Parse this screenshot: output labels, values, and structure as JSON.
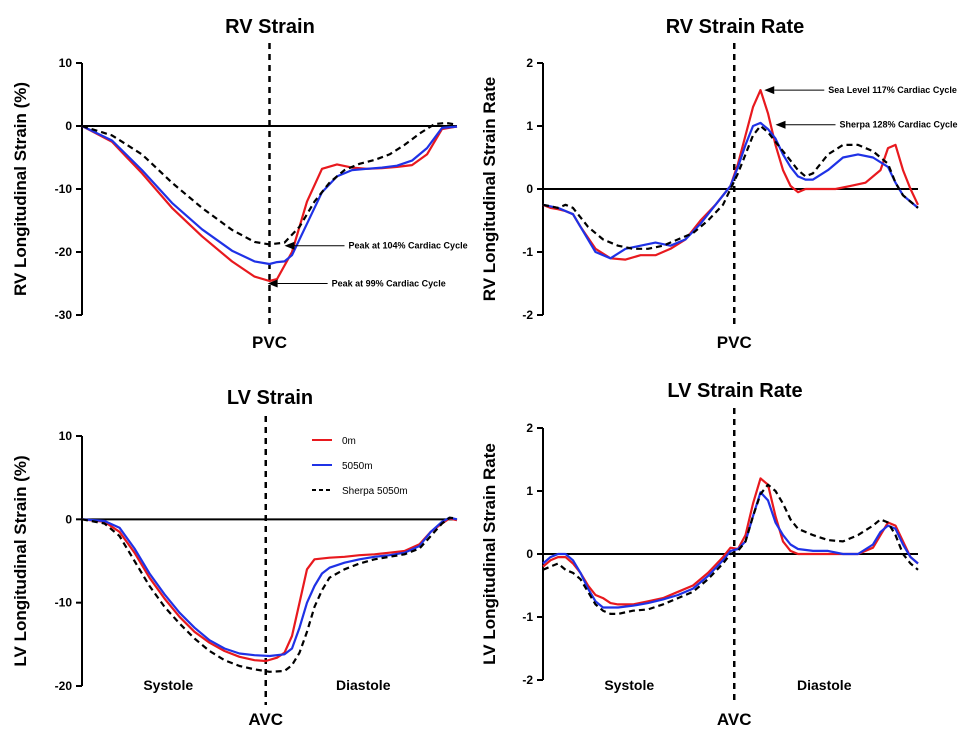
{
  "colors": {
    "sea_level": "#e8191e",
    "altitude": "#1f32e6",
    "sherpa": "#000000"
  },
  "legend": {
    "items": [
      {
        "label": "0m",
        "color": "#e8191e",
        "style": "solid"
      },
      {
        "label": "5050m",
        "color": "#1f32e6",
        "style": "solid"
      },
      {
        "label": "Sherpa 5050m",
        "color": "#000000",
        "style": "dashed"
      }
    ]
  },
  "chart_data": [
    {
      "id": "rv_strain",
      "type": "line",
      "title": "RV Strain",
      "xlabel": "",
      "ylabel": "RV Longitudinal Strain (%)",
      "ylim": [
        -30,
        10
      ],
      "xlim": [
        0,
        100
      ],
      "yticks": [
        10,
        0,
        -10,
        -20,
        -30
      ],
      "grid": false,
      "marker": {
        "label": "PVC",
        "x": 50
      },
      "phases": [],
      "annotations": [
        {
          "text": "Peak at 104% Cardiac Cycle",
          "x": 54,
          "y": -19
        },
        {
          "text": "Peak at 99% Cardiac Cycle",
          "x": 49.5,
          "y": -25
        }
      ],
      "series": [
        {
          "color": "#e8191e",
          "style": "solid",
          "x": [
            0,
            8,
            16,
            24,
            32,
            40,
            46,
            50,
            52,
            56,
            60,
            64,
            68,
            72,
            76,
            80,
            84,
            88,
            92,
            96,
            100
          ],
          "y": [
            0,
            -2.5,
            -7.5,
            -13,
            -17.5,
            -21.5,
            -23.9,
            -24.6,
            -24.3,
            -20,
            -12,
            -6.8,
            -6.1,
            -6.6,
            -6.8,
            -6.7,
            -6.5,
            -6.2,
            -4.5,
            -0.5,
            -0.1
          ]
        },
        {
          "color": "#1f32e6",
          "style": "solid",
          "x": [
            0,
            8,
            16,
            24,
            32,
            40,
            46,
            50,
            52,
            54,
            56,
            60,
            64,
            68,
            72,
            76,
            80,
            84,
            88,
            92,
            96,
            100
          ],
          "y": [
            0,
            -2.3,
            -7,
            -12.2,
            -16.4,
            -19.8,
            -21.5,
            -21.9,
            -21.6,
            -21.5,
            -20.5,
            -15.5,
            -10.5,
            -8,
            -7,
            -6.8,
            -6.6,
            -6.3,
            -5.5,
            -3.5,
            -0.3,
            -0.1
          ]
        },
        {
          "color": "#000000",
          "style": "dashed",
          "x": [
            0,
            8,
            16,
            24,
            32,
            40,
            46,
            50,
            54,
            58,
            62,
            66,
            70,
            74,
            78,
            82,
            86,
            90,
            94,
            97,
            100
          ],
          "y": [
            0,
            -1.5,
            -4.5,
            -9,
            -13,
            -16.5,
            -18.4,
            -18.8,
            -18.5,
            -16,
            -12,
            -9,
            -7,
            -6,
            -5.4,
            -4.5,
            -3,
            -1.2,
            0.3,
            0.5,
            0.2
          ]
        }
      ]
    },
    {
      "id": "rv_strain_rate",
      "type": "line",
      "title": "RV Strain Rate",
      "xlabel": "",
      "ylabel": "RV Longitudinal Strain Rate",
      "ylim": [
        -2,
        2
      ],
      "xlim": [
        0,
        100
      ],
      "yticks": [
        2,
        1,
        0,
        -1,
        -2
      ],
      "grid": false,
      "marker": {
        "label": "PVC",
        "x": 51
      },
      "phases": [],
      "annotations": [
        {
          "text": "Sea Level 117% Cardiac Cycle",
          "x": 59,
          "y": 1.57
        },
        {
          "text": "Sherpa 128% Cardiac Cycle",
          "x": 62,
          "y": 1.02
        }
      ],
      "series": [
        {
          "color": "#e8191e",
          "style": "solid",
          "x": [
            0,
            2,
            4,
            6,
            8,
            10,
            14,
            18,
            22,
            26,
            30,
            34,
            38,
            42,
            46,
            50,
            52,
            54,
            56,
            58,
            60,
            62,
            64,
            66,
            68,
            70,
            74,
            78,
            82,
            86,
            90,
            92,
            94,
            96,
            98,
            100
          ],
          "y": [
            -0.25,
            -0.3,
            -0.32,
            -0.35,
            -0.4,
            -0.6,
            -0.95,
            -1.1,
            -1.12,
            -1.05,
            -1.05,
            -0.95,
            -0.8,
            -0.5,
            -0.25,
            0.05,
            0.4,
            0.85,
            1.3,
            1.57,
            1.2,
            0.7,
            0.3,
            0.05,
            -0.05,
            0.0,
            0.0,
            0.0,
            0.05,
            0.1,
            0.3,
            0.65,
            0.7,
            0.3,
            0.0,
            -0.25
          ]
        },
        {
          "color": "#1f32e6",
          "style": "solid",
          "x": [
            0,
            4,
            8,
            10,
            14,
            18,
            22,
            26,
            30,
            34,
            38,
            42,
            46,
            50,
            52,
            54,
            56,
            58,
            60,
            62,
            64,
            66,
            68,
            70,
            72,
            76,
            80,
            84,
            88,
            92,
            94,
            96,
            98,
            100
          ],
          "y": [
            -0.25,
            -0.3,
            -0.4,
            -0.6,
            -1.0,
            -1.1,
            -0.95,
            -0.9,
            -0.85,
            -0.9,
            -0.8,
            -0.55,
            -0.25,
            0.05,
            0.35,
            0.7,
            1.0,
            1.05,
            0.95,
            0.8,
            0.55,
            0.35,
            0.2,
            0.15,
            0.15,
            0.3,
            0.5,
            0.55,
            0.5,
            0.35,
            0.1,
            -0.1,
            -0.2,
            -0.3
          ]
        },
        {
          "color": "#000000",
          "style": "dashed",
          "x": [
            0,
            4,
            6,
            8,
            12,
            16,
            20,
            24,
            28,
            32,
            36,
            40,
            44,
            48,
            50,
            52,
            54,
            56,
            58,
            60,
            62,
            64,
            66,
            68,
            70,
            72,
            74,
            76,
            80,
            84,
            88,
            92,
            94,
            96,
            98,
            100
          ],
          "y": [
            -0.25,
            -0.3,
            -0.25,
            -0.3,
            -0.6,
            -0.8,
            -0.9,
            -0.95,
            -0.95,
            -0.9,
            -0.8,
            -0.7,
            -0.5,
            -0.25,
            0.0,
            0.25,
            0.55,
            0.85,
            1.0,
            0.9,
            0.75,
            0.6,
            0.45,
            0.3,
            0.2,
            0.25,
            0.4,
            0.55,
            0.7,
            0.7,
            0.6,
            0.4,
            0.1,
            -0.1,
            -0.2,
            -0.3
          ]
        }
      ]
    },
    {
      "id": "lv_strain",
      "type": "line",
      "title": "LV Strain",
      "xlabel": "",
      "ylabel": "LV Longitudinal Strain (%)",
      "ylim": [
        -20,
        10
      ],
      "xlim": [
        0,
        100
      ],
      "yticks": [
        10,
        0,
        -10,
        -20
      ],
      "grid": false,
      "marker": {
        "label": "AVC",
        "x": 49
      },
      "phases": [
        {
          "label": "Systole",
          "x": 23
        },
        {
          "label": "Diastole",
          "x": 75
        }
      ],
      "annotations": [],
      "series": [
        {
          "color": "#e8191e",
          "style": "solid",
          "x": [
            0,
            6,
            10,
            14,
            18,
            22,
            26,
            30,
            34,
            38,
            42,
            46,
            49,
            52,
            54,
            56,
            58,
            60,
            62,
            66,
            70,
            74,
            78,
            82,
            86,
            90,
            93,
            96,
            98,
            100
          ],
          "y": [
            0,
            -0.3,
            -1.5,
            -4,
            -7,
            -9.5,
            -11.7,
            -13.5,
            -14.8,
            -15.8,
            -16.5,
            -16.9,
            -17.0,
            -16.6,
            -16.0,
            -14.0,
            -10.0,
            -6.0,
            -4.8,
            -4.6,
            -4.5,
            -4.3,
            -4.2,
            -4.0,
            -3.8,
            -3.0,
            -1.5,
            -0.5,
            0.1,
            -0.1
          ]
        },
        {
          "color": "#1f32e6",
          "style": "solid",
          "x": [
            0,
            6,
            10,
            14,
            18,
            22,
            26,
            30,
            34,
            38,
            42,
            46,
            50,
            54,
            56,
            58,
            60,
            62,
            64,
            66,
            70,
            74,
            78,
            82,
            86,
            90,
            93,
            96,
            98,
            100
          ],
          "y": [
            0,
            -0.2,
            -1.0,
            -3.5,
            -6.5,
            -9,
            -11.2,
            -13,
            -14.5,
            -15.5,
            -16.1,
            -16.3,
            -16.4,
            -16.2,
            -15.5,
            -13.0,
            -10.0,
            -8.0,
            -6.5,
            -5.8,
            -5.2,
            -4.8,
            -4.5,
            -4.3,
            -4.0,
            -3.2,
            -1.5,
            -0.3,
            0.2,
            0.0
          ]
        },
        {
          "color": "#000000",
          "style": "dashed",
          "x": [
            0,
            6,
            10,
            14,
            18,
            22,
            26,
            30,
            34,
            38,
            42,
            46,
            50,
            54,
            56,
            58,
            60,
            62,
            64,
            66,
            70,
            74,
            78,
            82,
            86,
            90,
            93,
            96,
            98,
            100
          ],
          "y": [
            0,
            -0.5,
            -2.0,
            -5,
            -8,
            -10.5,
            -12.5,
            -14.3,
            -15.8,
            -16.9,
            -17.6,
            -18.0,
            -18.3,
            -18.2,
            -17.5,
            -16,
            -13.5,
            -10.5,
            -8.5,
            -7,
            -6,
            -5.3,
            -4.8,
            -4.5,
            -4.2,
            -3.5,
            -2.0,
            -0.5,
            0.2,
            0.1
          ]
        }
      ]
    },
    {
      "id": "lv_strain_rate",
      "type": "line",
      "title": "LV Strain Rate",
      "xlabel": "",
      "ylabel": "LV Longitudinal Strain Rate",
      "ylim": [
        -2,
        2
      ],
      "xlim": [
        0,
        100
      ],
      "yticks": [
        2,
        1,
        0,
        -1,
        -2
      ],
      "grid": false,
      "marker": {
        "label": "AVC",
        "x": 51
      },
      "phases": [
        {
          "label": "Systole",
          "x": 23
        },
        {
          "label": "Diastole",
          "x": 75
        }
      ],
      "annotations": [],
      "series": [
        {
          "color": "#e8191e",
          "style": "solid",
          "x": [
            0,
            2,
            4,
            6,
            8,
            10,
            12,
            14,
            16,
            18,
            20,
            24,
            28,
            32,
            36,
            40,
            44,
            48,
            50,
            52,
            54,
            56,
            58,
            60,
            62,
            64,
            66,
            68,
            72,
            76,
            80,
            84,
            88,
            90,
            92,
            94,
            96,
            98,
            100
          ],
          "y": [
            -0.2,
            -0.1,
            -0.05,
            -0.05,
            -0.15,
            -0.3,
            -0.5,
            -0.65,
            -0.7,
            -0.78,
            -0.8,
            -0.8,
            -0.75,
            -0.7,
            -0.6,
            -0.5,
            -0.3,
            -0.05,
            0.1,
            0.08,
            0.3,
            0.8,
            1.2,
            1.1,
            0.6,
            0.2,
            0.05,
            0.0,
            0.0,
            0.0,
            0.0,
            0.0,
            0.1,
            0.3,
            0.5,
            0.45,
            0.2,
            -0.05,
            -0.15
          ]
        },
        {
          "color": "#1f32e6",
          "style": "solid",
          "x": [
            0,
            2,
            4,
            6,
            8,
            10,
            12,
            14,
            16,
            18,
            20,
            24,
            28,
            32,
            36,
            40,
            44,
            48,
            50,
            52,
            54,
            56,
            58,
            60,
            62,
            64,
            66,
            68,
            72,
            76,
            80,
            84,
            88,
            90,
            92,
            94,
            96,
            98,
            100
          ],
          "y": [
            -0.15,
            -0.05,
            0.0,
            0.0,
            -0.1,
            -0.3,
            -0.55,
            -0.75,
            -0.85,
            -0.85,
            -0.85,
            -0.82,
            -0.78,
            -0.72,
            -0.65,
            -0.55,
            -0.35,
            -0.1,
            0.05,
            0.08,
            0.2,
            0.6,
            0.98,
            0.85,
            0.5,
            0.3,
            0.15,
            0.08,
            0.05,
            0.05,
            0.0,
            0.0,
            0.15,
            0.35,
            0.45,
            0.4,
            0.15,
            -0.05,
            -0.15
          ]
        },
        {
          "color": "#000000",
          "style": "dashed",
          "x": [
            0,
            2,
            4,
            6,
            8,
            10,
            12,
            14,
            16,
            18,
            20,
            24,
            28,
            32,
            36,
            40,
            44,
            48,
            50,
            52,
            54,
            56,
            58,
            60,
            62,
            64,
            66,
            68,
            72,
            76,
            80,
            84,
            88,
            90,
            92,
            94,
            96,
            98,
            100
          ],
          "y": [
            -0.25,
            -0.2,
            -0.15,
            -0.25,
            -0.3,
            -0.4,
            -0.6,
            -0.8,
            -0.9,
            -0.95,
            -0.95,
            -0.9,
            -0.88,
            -0.8,
            -0.7,
            -0.6,
            -0.4,
            -0.15,
            0.0,
            0.05,
            0.2,
            0.6,
            0.95,
            1.1,
            1.0,
            0.8,
            0.55,
            0.4,
            0.3,
            0.22,
            0.2,
            0.3,
            0.45,
            0.55,
            0.5,
            0.3,
            0.0,
            -0.15,
            -0.25
          ]
        }
      ]
    }
  ]
}
